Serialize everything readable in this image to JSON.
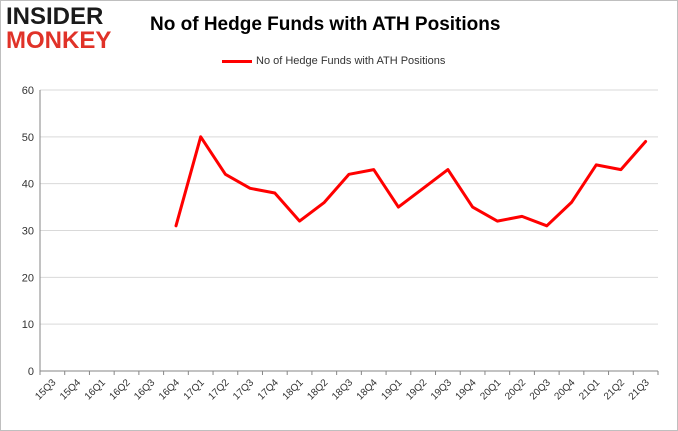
{
  "logo": {
    "line1": "INSIDER",
    "line2": "MONKEY"
  },
  "chart_data": {
    "type": "line",
    "title": "No of Hedge Funds with ATH Positions",
    "xlabel": "",
    "ylabel": "",
    "categories": [
      "15Q3",
      "15Q4",
      "16Q1",
      "16Q2",
      "16Q3",
      "16Q4",
      "17Q1",
      "17Q2",
      "17Q3",
      "17Q4",
      "18Q1",
      "18Q2",
      "18Q3",
      "18Q4",
      "19Q1",
      "19Q2",
      "19Q3",
      "19Q4",
      "20Q1",
      "20Q2",
      "20Q3",
      "20Q4",
      "21Q1",
      "21Q2",
      "21Q3"
    ],
    "series": [
      {
        "name": "No of Hedge Funds with ATH Positions",
        "color": "#ff0000",
        "values": [
          null,
          null,
          null,
          null,
          null,
          31,
          50,
          42,
          39,
          38,
          32,
          36,
          42,
          43,
          35,
          39,
          43,
          35,
          32,
          33,
          31,
          36,
          44,
          43,
          49
        ]
      }
    ],
    "ylim": [
      0,
      60
    ],
    "yticks": [
      0,
      10,
      20,
      30,
      40,
      50,
      60
    ],
    "grid": true,
    "legend": "top-center"
  }
}
